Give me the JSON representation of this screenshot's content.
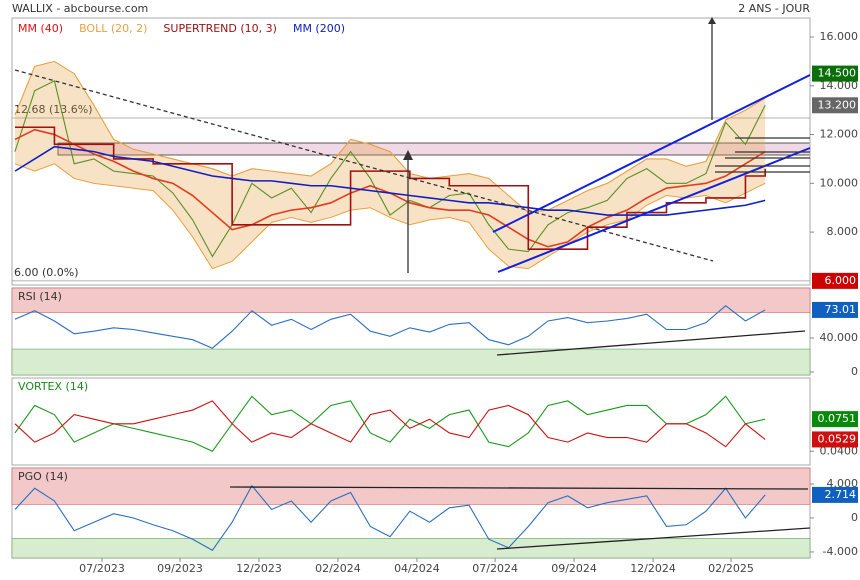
{
  "header": {
    "title": "WALLIX - abcbourse.com",
    "period": "2 ANS - JOUR"
  },
  "chart_data": [
    {
      "type": "line",
      "xlim": [
        -0.15,
        40.27
      ],
      "ylim": [
        5.83,
        16.78
      ],
      "yticks": [
        {
          "value": 8,
          "label": "8.000"
        },
        {
          "value": 10,
          "label": "10.000"
        },
        {
          "value": 12,
          "label": "12.000"
        },
        {
          "value": 14,
          "label": "14.000"
        },
        {
          "value": 16,
          "label": "16.000"
        }
      ],
      "series": [
        {
          "color": "#1a8a1a",
          "values": [
            11.3,
            13.8,
            14.2,
            10.8,
            11.0,
            10.5,
            10.4,
            10.3,
            9.6,
            8.5,
            7.0,
            8.3,
            10.0,
            9.4,
            9.8,
            8.8,
            10.2,
            11.3,
            10.2,
            8.7,
            9.3,
            9.0,
            9.5,
            9.6,
            8.3,
            7.3,
            7.2,
            8.3,
            8.8,
            9.0,
            9.3,
            10.2,
            10.6,
            10.0,
            10.0,
            10.4,
            12.5,
            11.6,
            13.2
          ]
        },
        {
          "name": "MM (40)",
          "color": "#e01010",
          "values": [
            11.8,
            12.2,
            12.0,
            11.6,
            11.2,
            10.9,
            10.5,
            10.2,
            10.0,
            9.5,
            8.8,
            8.1,
            8.3,
            8.7,
            8.9,
            9.0,
            9.2,
            9.6,
            9.9,
            9.6,
            9.2,
            9.0,
            8.9,
            8.9,
            8.7,
            8.2,
            7.7,
            7.4,
            7.6,
            8.2,
            8.6,
            8.9,
            9.4,
            9.8,
            9.9,
            10.0,
            10.3,
            10.8,
            11.3
          ]
        },
        {
          "name": "BOLL (20, 2)",
          "color": "#e8a040",
          "values": [
            12.8,
            14.8,
            15.0,
            14.5,
            13.2,
            11.8,
            11.4,
            11.2,
            11.0,
            10.8,
            10.6,
            10.3,
            10.6,
            10.5,
            10.4,
            10.3,
            10.8,
            11.8,
            11.6,
            11.3,
            10.4,
            10.2,
            10.3,
            10.4,
            10.2,
            9.5,
            8.8,
            8.9,
            9.3,
            9.7,
            10.0,
            10.5,
            11.0,
            11.0,
            10.7,
            10.9,
            12.6,
            13.0,
            13.5
          ],
          "lower": [
            10.8,
            10.5,
            10.8,
            10.2,
            10.0,
            9.9,
            9.8,
            9.7,
            8.9,
            7.8,
            6.5,
            6.8,
            7.6,
            8.4,
            8.6,
            8.4,
            8.6,
            8.9,
            9.0,
            8.6,
            8.3,
            8.5,
            8.6,
            8.4,
            7.3,
            6.6,
            6.5,
            7.0,
            7.5,
            8.0,
            8.3,
            8.5,
            9.1,
            9.5,
            9.4,
            9.5,
            9.2,
            9.6,
            10.0
          ]
        },
        {
          "name": "SUPERTREND (10, 3)",
          "color": "#a01010",
          "step": true,
          "values": [
            12.3,
            12.3,
            11.6,
            11.6,
            11.6,
            11.0,
            11.0,
            10.8,
            10.8,
            10.8,
            10.8,
            8.3,
            8.3,
            8.3,
            8.3,
            8.3,
            8.3,
            10.5,
            10.5,
            10.5,
            10.2,
            10.2,
            9.9,
            9.9,
            9.9,
            9.9,
            7.3,
            7.3,
            7.3,
            8.2,
            8.2,
            8.8,
            8.8,
            9.2,
            9.2,
            9.4,
            9.4,
            10.3,
            10.6
          ]
        },
        {
          "name": "MM (200)",
          "color": "#1020c0",
          "values": [
            10.5,
            11.0,
            11.5,
            11.4,
            11.3,
            11.1,
            11.0,
            10.9,
            10.7,
            10.5,
            10.3,
            10.2,
            10.1,
            10.1,
            10.0,
            9.9,
            9.9,
            9.8,
            9.7,
            9.6,
            9.5,
            9.4,
            9.3,
            9.2,
            9.2,
            9.1,
            9.0,
            8.9,
            8.9,
            8.8,
            8.7,
            8.7,
            8.7,
            8.7,
            8.8,
            8.9,
            9.0,
            9.1,
            9.3
          ]
        }
      ],
      "levels": [
        {
          "value": 12.68,
          "label": "12.68 (13.6%)"
        },
        {
          "value": 6.0,
          "label": "6.00 (0.0%)"
        }
      ],
      "markers": [
        {
          "value": 14.5,
          "label": "14.500",
          "color": "#0a6e0a"
        },
        {
          "value": 13.2,
          "label": "13.200",
          "color": "#666666"
        },
        {
          "value": 6.0,
          "label": "6.000",
          "color": "#cc0000"
        }
      ]
    },
    {
      "type": "line",
      "title": "RSI (14)",
      "xlim": [
        -0.15,
        40.27
      ],
      "ylim": [
        -3.5,
        98.8
      ],
      "bands": [
        70,
        27
      ],
      "yticks": [
        0,
        {
          "value": 40,
          "label": "40.000"
        }
      ],
      "series": [
        {
          "color": "#2a6fc0",
          "values": [
            62,
            72,
            60,
            45,
            48,
            52,
            50,
            46,
            42,
            38,
            28,
            48,
            72,
            55,
            62,
            50,
            62,
            68,
            48,
            42,
            52,
            47,
            56,
            58,
            38,
            32,
            42,
            60,
            64,
            58,
            60,
            63,
            68,
            50,
            50,
            58,
            78,
            60,
            73.01
          ]
        }
      ],
      "markers": [
        {
          "value": 73.01,
          "label": "73.01",
          "color": "#1060c0"
        }
      ]
    },
    {
      "type": "line",
      "title": "VORTEX (14)",
      "title_color": "#1a8a1a",
      "xlim": [
        -0.15,
        40.27
      ],
      "ylim": [
        0.025,
        0.12
      ],
      "yticks": [
        {
          "value": 0.04,
          "label": "0.0400"
        }
      ],
      "series": [
        {
          "color": "#1a9a1a",
          "values": [
            0.06,
            0.09,
            0.08,
            0.05,
            0.06,
            0.07,
            0.065,
            0.06,
            0.055,
            0.05,
            0.04,
            0.07,
            0.1,
            0.08,
            0.085,
            0.07,
            0.09,
            0.095,
            0.06,
            0.05,
            0.075,
            0.065,
            0.08,
            0.085,
            0.05,
            0.045,
            0.06,
            0.09,
            0.095,
            0.08,
            0.085,
            0.09,
            0.09,
            0.07,
            0.07,
            0.08,
            0.1,
            0.07,
            0.0751
          ]
        },
        {
          "color": "#cc1010",
          "values": [
            0.07,
            0.05,
            0.06,
            0.08,
            0.075,
            0.07,
            0.07,
            0.075,
            0.08,
            0.085,
            0.095,
            0.07,
            0.05,
            0.06,
            0.055,
            0.07,
            0.06,
            0.05,
            0.08,
            0.085,
            0.065,
            0.075,
            0.06,
            0.055,
            0.085,
            0.09,
            0.08,
            0.055,
            0.05,
            0.06,
            0.055,
            0.055,
            0.05,
            0.07,
            0.07,
            0.06,
            0.045,
            0.07,
            0.0529
          ]
        }
      ],
      "markers": [
        {
          "value": 0.0751,
          "label": "0.0751",
          "color": "#0a8a0a"
        },
        {
          "value": 0.0529,
          "label": "0.0529",
          "color": "#cc1010"
        }
      ]
    },
    {
      "type": "line",
      "title": "PGO (14)",
      "xlim": [
        -0.15,
        40.27
      ],
      "ylim": [
        -4.71,
        5.88
      ],
      "bands": [
        1.6,
        -2.4
      ],
      "yticks": [
        {
          "value": 4,
          "label": "4.000"
        },
        0,
        {
          "value": -4,
          "label": "-4.000"
        }
      ],
      "xticks": [
        {
          "value": 4.41,
          "label": "07/2023"
        },
        {
          "value": 8.36,
          "label": "09/2023"
        },
        {
          "value": 12.36,
          "label": "12/2023"
        },
        {
          "value": 16.36,
          "label": "02/2024"
        },
        {
          "value": 20.36,
          "label": "04/2024"
        },
        {
          "value": 24.32,
          "label": "07/2024"
        },
        {
          "value": 28.32,
          "label": "09/2024"
        },
        {
          "value": 32.32,
          "label": "12/2024"
        },
        {
          "value": 36.27,
          "label": "02/2025"
        }
      ],
      "series": [
        {
          "color": "#2a6fc0",
          "values": [
            1,
            3.5,
            2,
            -1.5,
            -0.5,
            0.5,
            0,
            -0.8,
            -1.5,
            -2.5,
            -3.8,
            -0.5,
            3.8,
            1,
            2,
            -0.5,
            2,
            3,
            -1,
            -2.2,
            0.8,
            -0.5,
            1.2,
            1.5,
            -2.5,
            -3.5,
            -1,
            1.8,
            2.6,
            1.2,
            1.8,
            2.2,
            2.6,
            -1,
            -0.8,
            0.8,
            3.5,
            0,
            2.714
          ]
        }
      ],
      "markers": [
        {
          "value": 2.714,
          "label": "2.714",
          "color": "#1060c0"
        }
      ]
    }
  ]
}
